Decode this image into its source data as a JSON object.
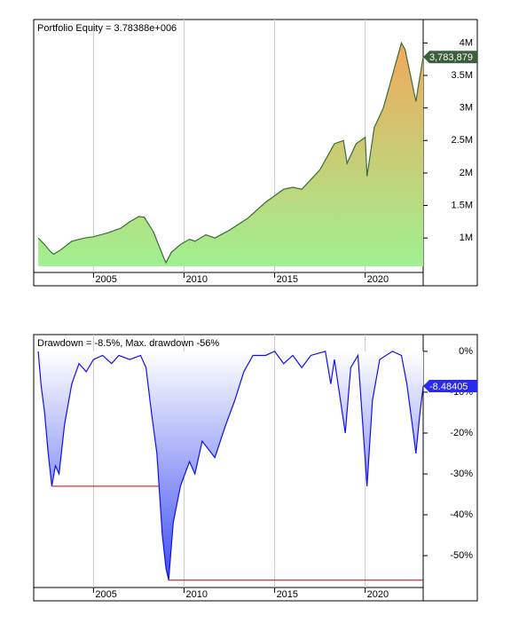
{
  "chart_data": [
    {
      "type": "line",
      "title": "Portfolio Equity = 3.78388e+006",
      "color": "#3b6b3b",
      "fill_colors": [
        "#f2a85a",
        "#a0f090"
      ],
      "tag_color": "#3b5e3b",
      "x": [
        2001.95,
        2002.3,
        2002.6,
        2002.8,
        2003.2,
        2003.8,
        2004.5,
        2005.0,
        2005.8,
        2006.5,
        2007.0,
        2007.5,
        2007.8,
        2008.3,
        2008.8,
        2009.0,
        2009.3,
        2009.8,
        2010.3,
        2010.6,
        2011.2,
        2011.7,
        2012.5,
        2013.5,
        2014.5,
        2015.5,
        2016.0,
        2016.5,
        2017.5,
        2018.0,
        2018.3,
        2018.8,
        2019.0,
        2019.5,
        2020.0,
        2020.1,
        2020.5,
        2021.0,
        2021.5,
        2022.0,
        2022.2,
        2022.5,
        2022.8,
        2023.0,
        2023.2
      ],
      "values": [
        1000000,
        900000,
        800000,
        750000,
        820000,
        950000,
        1000000,
        1020000,
        1080000,
        1150000,
        1250000,
        1330000,
        1320000,
        1100000,
        750000,
        620000,
        780000,
        900000,
        980000,
        950000,
        1050000,
        1000000,
        1120000,
        1300000,
        1550000,
        1750000,
        1780000,
        1750000,
        2050000,
        2300000,
        2450000,
        2500000,
        2150000,
        2450000,
        2550000,
        1950000,
        2700000,
        3000000,
        3500000,
        4000000,
        3900000,
        3500000,
        3100000,
        3450000,
        3783879
      ],
      "value_labels": [
        null,
        null,
        null,
        null,
        null,
        null,
        null,
        null,
        null,
        null,
        null,
        null,
        null,
        null,
        null,
        null,
        null,
        null,
        null,
        null,
        null,
        null,
        null,
        null,
        null,
        null,
        null,
        null,
        null,
        null,
        null,
        null,
        null,
        null,
        null,
        null,
        null,
        null,
        null,
        null,
        null,
        null,
        null,
        null,
        "3,783,879"
      ],
      "xlim": [
        2001.7,
        2023.2
      ],
      "xticks": [
        2005,
        2010,
        2015,
        2020
      ],
      "ylim": [
        470000,
        4360000
      ],
      "yticks": [
        {
          "value": 1000000,
          "label": "1M"
        },
        {
          "value": 1500000,
          "label": "1.5M"
        },
        {
          "value": 2000000,
          "label": "2M"
        },
        {
          "value": 2500000,
          "label": "2.5M"
        },
        {
          "value": 3000000,
          "label": "3M"
        },
        {
          "value": 3500000,
          "label": "3.5M"
        },
        {
          "value": 4000000,
          "label": "4M"
        }
      ]
    },
    {
      "type": "line",
      "title": "Drawdown = -8.5%, Max. drawdown -56%",
      "color": "#1010ee",
      "fill_colors": [
        "#ffffff",
        "#3f4ff0"
      ],
      "tag_color": "#2a2aee",
      "x": [
        2001.95,
        2002.1,
        2002.3,
        2002.5,
        2002.7,
        2002.9,
        2003.1,
        2003.4,
        2003.8,
        2004.2,
        2004.6,
        2005.0,
        2005.5,
        2006.0,
        2006.4,
        2007.0,
        2007.6,
        2007.9,
        2008.2,
        2008.5,
        2008.8,
        2009.0,
        2009.15,
        2009.4,
        2009.8,
        2010.3,
        2010.6,
        2011.0,
        2011.7,
        2012.3,
        2012.8,
        2013.3,
        2013.8,
        2014.5,
        2015.0,
        2015.5,
        2016.0,
        2016.5,
        2017.0,
        2017.8,
        2018.1,
        2018.3,
        2018.9,
        2019.2,
        2019.6,
        2020.1,
        2020.4,
        2020.8,
        2021.5,
        2022.0,
        2022.3,
        2022.6,
        2022.8,
        2023.0,
        2023.2
      ],
      "values": [
        0,
        -8,
        -15,
        -25,
        -33,
        -28,
        -30,
        -18,
        -8,
        -3,
        -5,
        -2,
        -1,
        -3,
        -1,
        -2,
        -1,
        -4,
        -15,
        -25,
        -45,
        -53,
        -56,
        -42,
        -33,
        -27,
        -30,
        -22,
        -26,
        -18,
        -12,
        -5,
        -1,
        -1,
        0,
        -3,
        -1,
        -4,
        -1,
        0,
        -8,
        -2,
        -20,
        -4,
        -1,
        -33,
        -12,
        -2,
        0,
        -1,
        -8,
        -18,
        -25,
        -16,
        -8.48405
      ],
      "max_drawdown": {
        "color": "#cc0000",
        "x": [
          2002.7,
          2008.6,
          2008.8,
          2009.15,
          2023.2
        ],
        "values": [
          -33,
          -33,
          null,
          -56,
          -56
        ]
      },
      "xlim": [
        2001.7,
        2023.2
      ],
      "xticks": [
        2005,
        2010,
        2015,
        2020
      ],
      "ylim": [
        -57.8,
        4.1
      ],
      "yticks": [
        {
          "value": 0,
          "label": "0%"
        },
        {
          "value": -10,
          "label": "-10%"
        },
        {
          "value": -20,
          "label": "-20%"
        },
        {
          "value": -30,
          "label": "-30%"
        },
        {
          "value": -40,
          "label": "-40%"
        },
        {
          "value": -50,
          "label": "-50%"
        }
      ]
    }
  ]
}
